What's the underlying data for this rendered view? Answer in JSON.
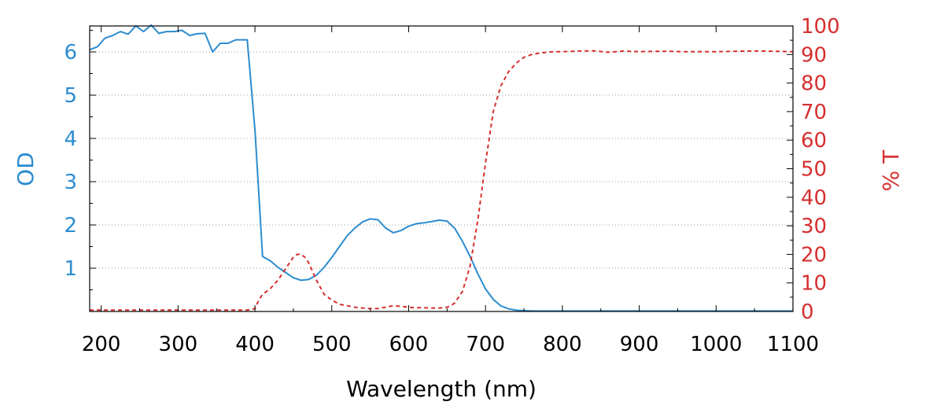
{
  "chart_data": {
    "type": "line",
    "xlabel": "Wavelength (nm)",
    "ylabel_left": "OD",
    "ylabel_right": "% T",
    "xlim": [
      185,
      1100
    ],
    "ylim_left": [
      0,
      6.6
    ],
    "ylim_right": [
      0,
      100
    ],
    "xticks": [
      200,
      300,
      400,
      500,
      600,
      700,
      800,
      900,
      1000,
      1100
    ],
    "yticks_left": [
      1,
      2,
      3,
      4,
      5,
      6
    ],
    "yticks_right": [
      0,
      10,
      20,
      30,
      40,
      50,
      60,
      70,
      80,
      90,
      100
    ],
    "grid": "horizontal dotted at left-axis ticks",
    "colors": {
      "od": "#2b8ccf",
      "transmission": "#d62f2f",
      "axis": "#000000"
    },
    "series": [
      {
        "axis": "left",
        "style": "solid",
        "x": [
          185,
          195,
          205,
          215,
          225,
          235,
          245,
          255,
          265,
          275,
          285,
          295,
          305,
          315,
          325,
          335,
          345,
          355,
          365,
          375,
          385,
          390,
          400,
          410,
          420,
          430,
          440,
          450,
          460,
          470,
          480,
          490,
          500,
          510,
          520,
          530,
          540,
          550,
          560,
          570,
          580,
          590,
          600,
          610,
          620,
          630,
          640,
          650,
          660,
          670,
          680,
          690,
          700,
          710,
          720,
          730,
          740,
          750,
          760,
          780,
          800,
          850,
          900,
          950,
          1000,
          1050,
          1100
        ],
        "values": [
          6.05,
          6.12,
          6.32,
          6.38,
          6.47,
          6.41,
          6.6,
          6.47,
          6.62,
          6.43,
          6.47,
          6.47,
          6.5,
          6.38,
          6.42,
          6.43,
          6.0,
          6.2,
          6.2,
          6.28,
          6.28,
          6.28,
          4.2,
          1.27,
          1.17,
          1.02,
          0.9,
          0.78,
          0.72,
          0.74,
          0.84,
          1.02,
          1.25,
          1.5,
          1.75,
          1.93,
          2.07,
          2.14,
          2.12,
          1.93,
          1.82,
          1.87,
          1.97,
          2.03,
          2.05,
          2.08,
          2.11,
          2.09,
          1.92,
          1.62,
          1.27,
          0.87,
          0.52,
          0.28,
          0.13,
          0.06,
          0.03,
          0.02,
          0.01,
          0.01,
          0.01,
          0.01,
          0.01,
          0.01,
          0.01,
          0.01,
          0.01
        ]
      },
      {
        "axis": "right",
        "style": "dashed",
        "x": [
          185,
          300,
          390,
          400,
          405,
          410,
          420,
          430,
          440,
          450,
          455,
          460,
          465,
          470,
          480,
          490,
          500,
          510,
          520,
          530,
          540,
          550,
          560,
          570,
          580,
          590,
          600,
          610,
          620,
          630,
          640,
          650,
          655,
          660,
          670,
          680,
          690,
          700,
          710,
          720,
          730,
          740,
          750,
          760,
          770,
          780,
          790,
          800,
          820,
          840,
          860,
          880,
          900,
          920,
          940,
          960,
          980,
          1000,
          1020,
          1040,
          1060,
          1080,
          1100
        ],
        "values": [
          0.5,
          0.5,
          0.5,
          1,
          4,
          6,
          8,
          11,
          15,
          19,
          20,
          20,
          19,
          17,
          11,
          6,
          4,
          2.5,
          2,
          1.5,
          1.2,
          1,
          1,
          1.5,
          2,
          1.8,
          1.5,
          1.3,
          1.3,
          1.2,
          1.2,
          1.5,
          2,
          3,
          7,
          16,
          32,
          52,
          70,
          79,
          84,
          87,
          89,
          90,
          90.5,
          90.8,
          91,
          91,
          91.2,
          91.3,
          90.8,
          91.2,
          91,
          91.1,
          91.1,
          91,
          91,
          91,
          91.1,
          91.2,
          91.2,
          91.1,
          91
        ]
      }
    ]
  }
}
